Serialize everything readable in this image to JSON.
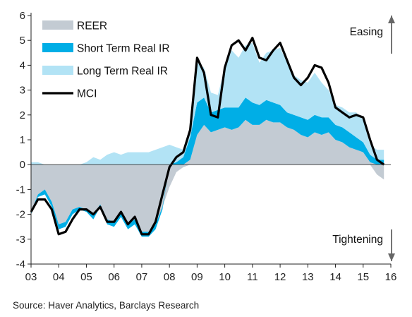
{
  "source": "Source: Haver Analytics, Barclays Research",
  "chart_data": {
    "type": "area",
    "title": "",
    "xlabel": "",
    "ylabel": "",
    "xlim": [
      2003,
      2016
    ],
    "ylim": [
      -4,
      6
    ],
    "x_tick_labels": [
      "03",
      "04",
      "05",
      "06",
      "07",
      "08",
      "09",
      "10",
      "11",
      "12",
      "13",
      "14",
      "15",
      "16"
    ],
    "y_tick_labels": [
      "-4",
      "-3",
      "-2",
      "-1",
      "0",
      "1",
      "2",
      "3",
      "4",
      "5",
      "6"
    ],
    "grid": false,
    "legend": "top-left",
    "annotations": [
      {
        "text": "Easing",
        "position": "top-right",
        "arrow": "up"
      },
      {
        "text": "Tightening",
        "position": "bottom-right",
        "arrow": "down"
      }
    ],
    "x": [
      2003.0,
      2003.25,
      2003.5,
      2003.75,
      2004.0,
      2004.25,
      2004.5,
      2004.75,
      2005.0,
      2005.25,
      2005.5,
      2005.75,
      2006.0,
      2006.25,
      2006.5,
      2006.75,
      2007.0,
      2007.25,
      2007.5,
      2007.75,
      2008.0,
      2008.25,
      2008.5,
      2008.75,
      2009.0,
      2009.25,
      2009.5,
      2009.75,
      2010.0,
      2010.25,
      2010.5,
      2010.75,
      2011.0,
      2011.25,
      2011.5,
      2011.75,
      2012.0,
      2012.25,
      2012.5,
      2012.75,
      2013.0,
      2013.25,
      2013.5,
      2013.75,
      2014.0,
      2014.25,
      2014.5,
      2014.75,
      2015.0,
      2015.25,
      2015.5,
      2015.75
    ],
    "series": [
      {
        "name": "REER",
        "color": "#c3cbd3",
        "values": [
          -1.9,
          -1.2,
          -1.0,
          -1.5,
          -2.4,
          -2.3,
          -1.8,
          -1.7,
          -1.8,
          -2.0,
          -1.6,
          -2.2,
          -2.3,
          -1.9,
          -2.4,
          -2.2,
          -2.7,
          -2.7,
          -2.4,
          -1.7,
          -0.9,
          -0.3,
          -0.1,
          0.2,
          1.2,
          1.6,
          1.3,
          1.4,
          1.5,
          1.4,
          1.5,
          1.8,
          1.6,
          1.6,
          1.8,
          1.7,
          1.7,
          1.5,
          1.4,
          1.2,
          1.1,
          1.3,
          1.2,
          1.3,
          1.0,
          0.9,
          0.7,
          0.6,
          0.5,
          0.1,
          -0.4,
          -0.6
        ]
      },
      {
        "name": "Short Term Real IR",
        "color": "#00aee6",
        "values": [
          -0.1,
          -0.1,
          -0.2,
          -0.2,
          -0.2,
          -0.2,
          -0.2,
          -0.1,
          -0.1,
          -0.2,
          -0.1,
          -0.2,
          -0.2,
          -0.2,
          -0.2,
          -0.2,
          -0.2,
          -0.2,
          -0.2,
          -0.1,
          0.0,
          0.1,
          0.3,
          0.9,
          1.3,
          1.1,
          0.8,
          0.8,
          0.8,
          0.9,
          0.8,
          0.9,
          0.9,
          0.8,
          0.8,
          0.8,
          0.7,
          0.6,
          0.6,
          0.7,
          0.7,
          0.7,
          0.7,
          0.6,
          0.6,
          0.6,
          0.6,
          0.5,
          0.4,
          0.3,
          0.2,
          0.2
        ]
      },
      {
        "name": "Long Term Real IR",
        "color": "#b2e3f5",
        "values": [
          0.1,
          0.1,
          0.0,
          0.0,
          0.0,
          0.0,
          0.0,
          0.0,
          0.1,
          0.3,
          0.2,
          0.4,
          0.5,
          0.4,
          0.5,
          0.5,
          0.5,
          0.5,
          0.6,
          0.7,
          0.8,
          0.6,
          0.3,
          0.2,
          1.6,
          1.2,
          0.8,
          0.6,
          1.6,
          2.3,
          2.0,
          2.1,
          2.4,
          1.7,
          1.9,
          2.1,
          2.3,
          2.0,
          1.6,
          1.5,
          1.5,
          1.7,
          1.4,
          1.1,
          0.8,
          0.8,
          0.8,
          1.0,
          0.9,
          0.4,
          0.4,
          0.4
        ]
      },
      {
        "name": "MCI",
        "color": "#000000",
        "values": [
          -1.9,
          -1.4,
          -1.4,
          -1.8,
          -2.8,
          -2.7,
          -2.2,
          -1.8,
          -1.8,
          -2.0,
          -1.7,
          -2.3,
          -2.3,
          -1.9,
          -2.4,
          -2.1,
          -2.8,
          -2.8,
          -2.3,
          -1.2,
          -0.1,
          0.3,
          0.5,
          1.4,
          4.3,
          3.7,
          2.0,
          1.9,
          3.9,
          4.8,
          5.0,
          4.6,
          5.1,
          4.3,
          4.2,
          4.6,
          4.9,
          4.2,
          3.5,
          3.2,
          3.5,
          4.0,
          3.9,
          3.3,
          2.3,
          2.1,
          1.9,
          2.0,
          1.9,
          1.0,
          0.2,
          0.0
        ]
      }
    ]
  }
}
